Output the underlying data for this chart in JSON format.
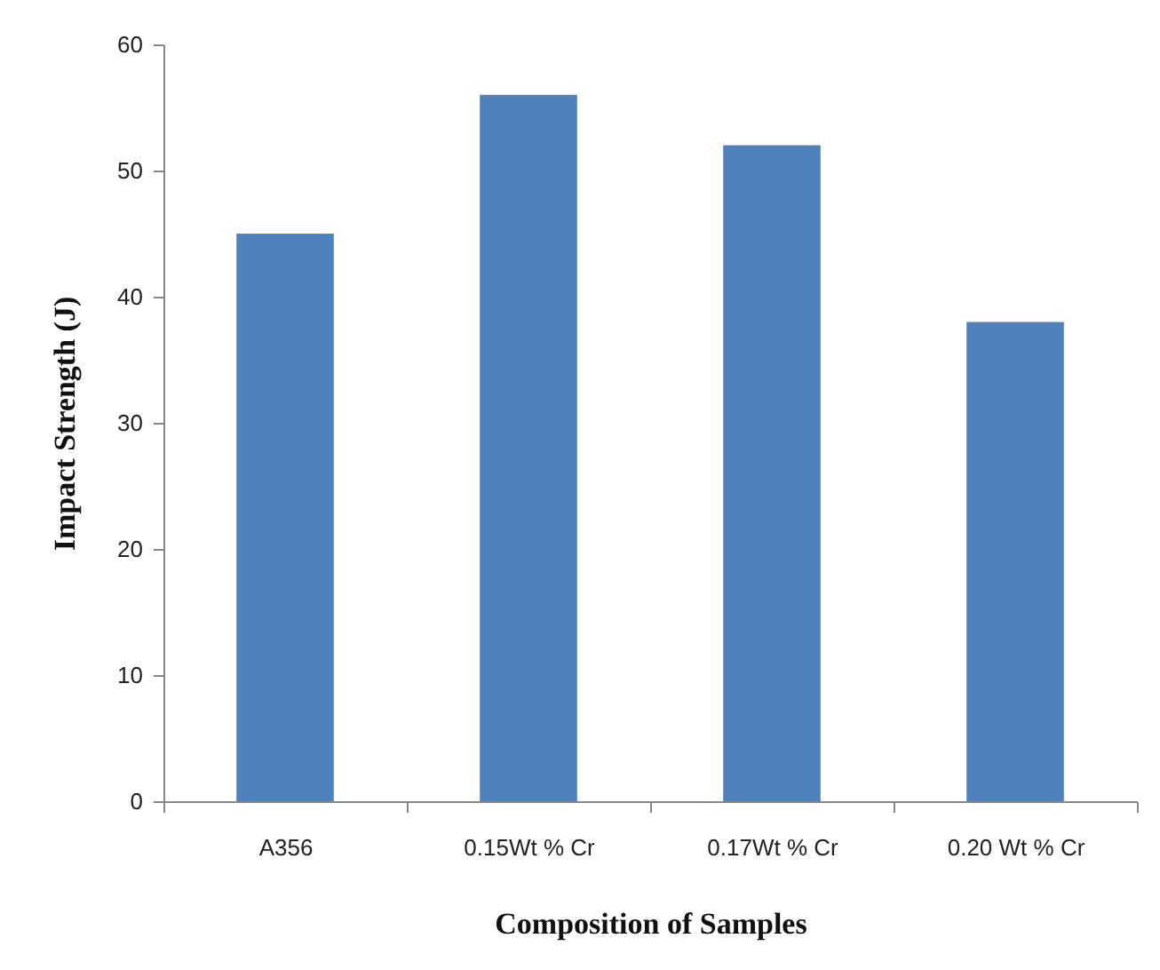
{
  "chart_data": {
    "type": "bar",
    "xlabel": "Composition of Samples",
    "ylabel": "Impact Strength (J)",
    "categories": [
      "A356",
      "0.15Wt % Cr",
      "0.17Wt % Cr",
      "0.20 Wt % Cr"
    ],
    "values": [
      45,
      56,
      52,
      38
    ],
    "color": "#4f81bd",
    "ylim": [
      0,
      60
    ],
    "yticks": [
      0,
      10,
      20,
      30,
      40,
      50,
      60
    ],
    "grid": false
  }
}
